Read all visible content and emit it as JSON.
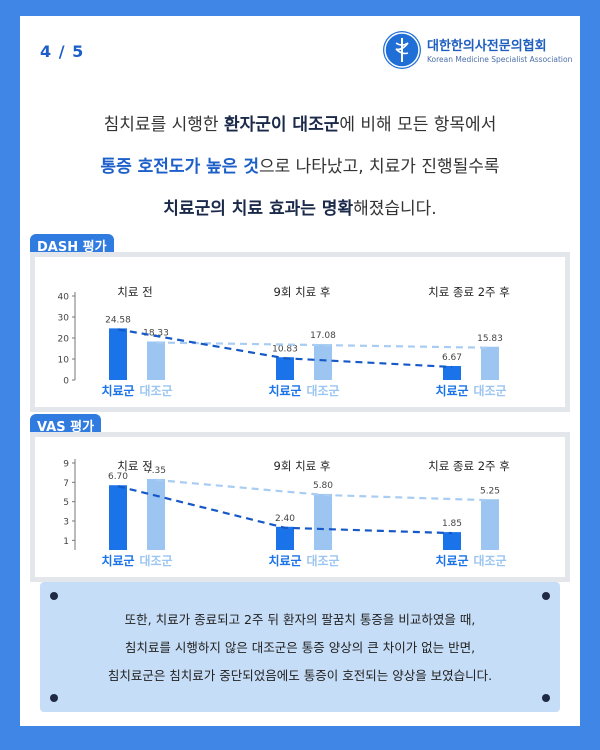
{
  "page_indicator": "4 / 5",
  "logo": {
    "name_ko": "대한한의사전문의협회",
    "name_en": "Korean Medicine Specialist Association"
  },
  "intro": {
    "line1": [
      {
        "t": "침치료를 시행한 ",
        "b": false
      },
      {
        "t": "환자군이 대조군",
        "b": true
      },
      {
        "t": "에 비해 모든 항목에서",
        "b": false
      }
    ],
    "line2": [
      {
        "t": "통증 호전도가 높은 것",
        "b": "blue"
      },
      {
        "t": "으로 나타났고, 치료가 진행될수록",
        "b": false
      }
    ],
    "line3": [
      {
        "t": "치료군의 치료 효과는 명확",
        "b": true
      },
      {
        "t": "해졌습니다.",
        "b": false
      }
    ]
  },
  "colors": {
    "treatment": "#1a73e8",
    "control": "#9cc6f1",
    "accent": "#2f7be0",
    "background": "#3f86e6"
  },
  "chart_data": [
    {
      "type": "bar",
      "title": "DASH 평가",
      "categories": [
        "치료 전",
        "9회 치료 후",
        "치료 종료 2주 후"
      ],
      "series": [
        {
          "name": "치료군",
          "values": [
            24.58,
            10.83,
            6.67
          ]
        },
        {
          "name": "대조군",
          "values": [
            18.33,
            17.08,
            15.83
          ]
        }
      ],
      "value_labels": [
        [
          "24.58",
          "10.83",
          "6.67"
        ],
        [
          "18.33",
          "17.08",
          "15.83"
        ]
      ],
      "yticks": [
        "40",
        "30",
        "20",
        "10",
        "0"
      ],
      "ylim": [
        0,
        40
      ],
      "xlabel": "",
      "ylabel": ""
    },
    {
      "type": "bar",
      "title": "VAS 평가",
      "categories": [
        "치료 전",
        "9회 치료 후",
        "치료 종료 2주 후"
      ],
      "series": [
        {
          "name": "치료군",
          "values": [
            6.7,
            2.4,
            1.85
          ]
        },
        {
          "name": "대조군",
          "values": [
            7.35,
            5.8,
            5.25
          ]
        }
      ],
      "value_labels": [
        [
          "6.70",
          "2.40",
          "1.85"
        ],
        [
          "7.35",
          "5.80",
          "5.25"
        ]
      ],
      "yticks": [
        "9",
        "7",
        "5",
        "3",
        "1"
      ],
      "ylim": [
        0,
        9
      ],
      "xlabel": "",
      "ylabel": ""
    }
  ],
  "note": {
    "line1": "또한, 치료가 종료되고 2주 뒤 환자의 팔꿈치 통증을 비교하였을 때,",
    "line2": "침치료를 시행하지 않은 대조군은 통증 양상의 큰 차이가 없는 반면,",
    "line3": "침치료군은 침치료가 중단되었음에도 통증이 호전되는 양상을 보였습니다."
  }
}
